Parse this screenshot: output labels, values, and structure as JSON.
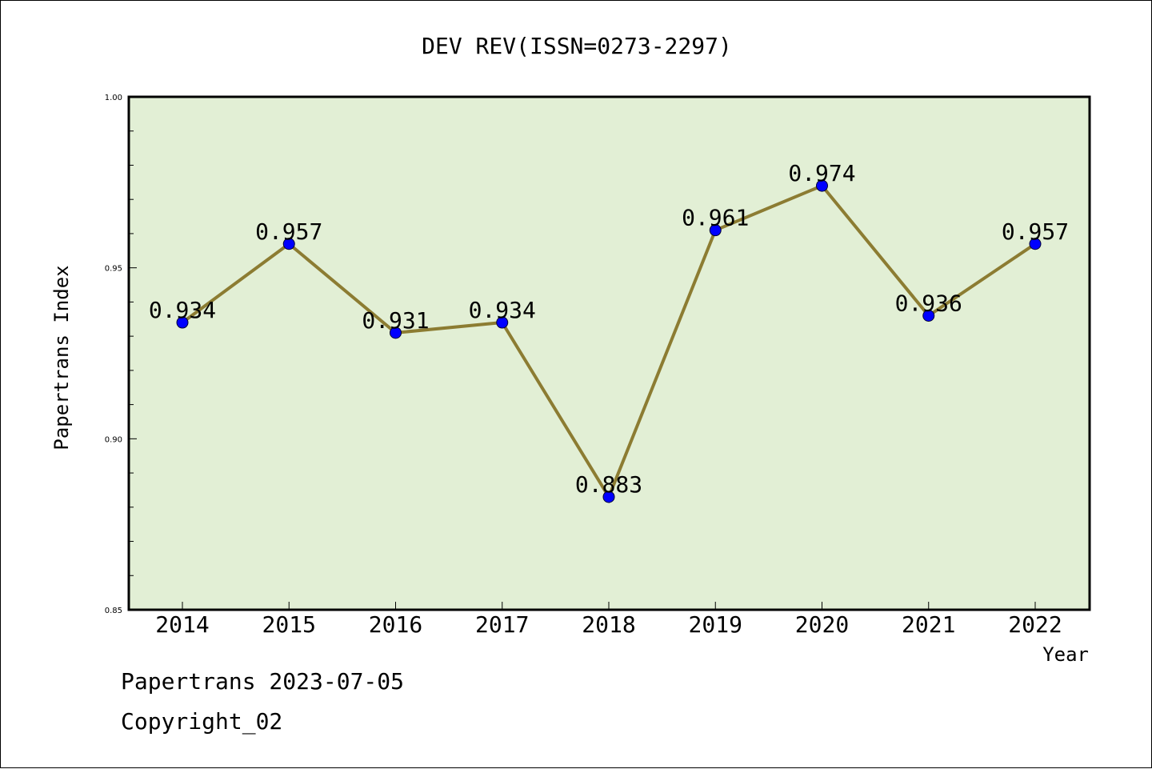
{
  "footer": {
    "line1": "Papertrans 2023-07-05",
    "line2": "Copyright_02"
  },
  "chart_data": {
    "type": "line",
    "title": "DEV REV(ISSN=0273-2297)",
    "xlabel": "Year",
    "ylabel": "Papertrans Index",
    "categories": [
      "2014",
      "2015",
      "2016",
      "2017",
      "2018",
      "2019",
      "2020",
      "2021",
      "2022"
    ],
    "values": [
      0.934,
      0.957,
      0.931,
      0.934,
      0.883,
      0.961,
      0.974,
      0.936,
      0.957
    ],
    "value_labels": [
      "0.934",
      "0.957",
      "0.931",
      "0.934",
      "0.883",
      "0.961",
      "0.974",
      "0.936",
      "0.957"
    ],
    "ylim": [
      0.85,
      1.0
    ],
    "yticks": [
      0.85,
      0.9,
      0.95,
      1.0
    ],
    "ytick_labels": [
      "0.85",
      "0.90",
      "0.95",
      "1.00"
    ],
    "grid": false,
    "colors": {
      "plot_background": "#e2efd5",
      "line": "#8c7c32",
      "marker": "#0000ff"
    }
  }
}
